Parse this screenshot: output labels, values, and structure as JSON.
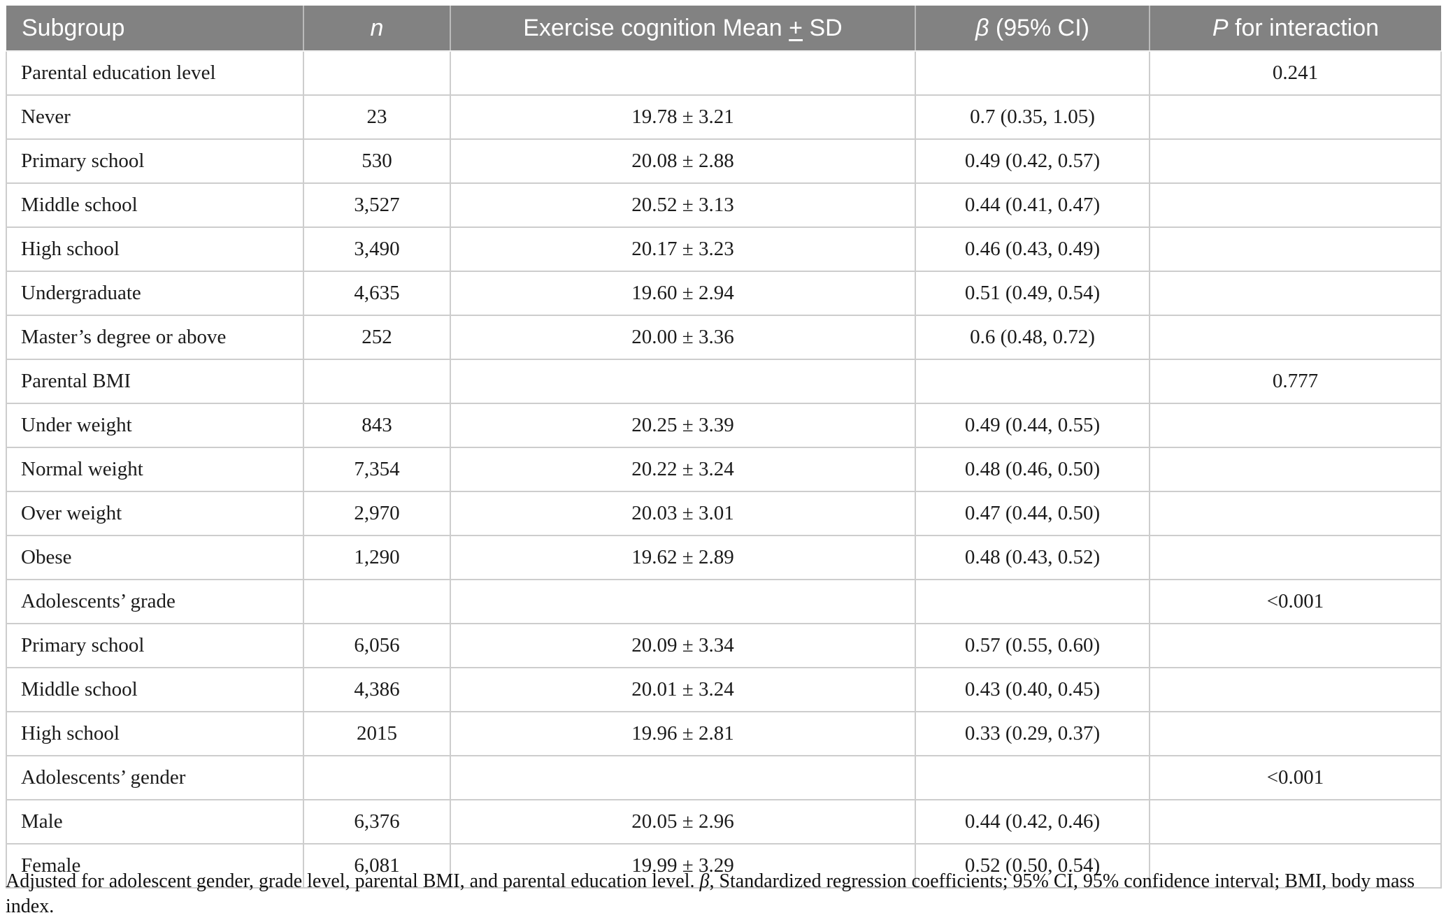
{
  "table": {
    "header": {
      "subgroup": "Subgroup",
      "n": "n",
      "mean_pre": "Exercise cognition Mean ",
      "mean_pm": "+",
      "mean_post": " SD",
      "beta_italic": "β",
      "beta_rest": " (95% CI)",
      "p_italic": "P",
      "p_rest": " for interaction"
    },
    "rows": [
      {
        "type": "category",
        "subgroup": "Parental education level",
        "n": "",
        "mean_sd": "",
        "beta_ci": "",
        "p_interaction": "0.241"
      },
      {
        "type": "data",
        "subgroup": "Never",
        "n": "23",
        "mean_sd": "19.78 ± 3.21",
        "beta_ci": "0.7 (0.35, 1.05)",
        "p_interaction": ""
      },
      {
        "type": "data",
        "subgroup": "Primary school",
        "n": "530",
        "mean_sd": "20.08 ± 2.88",
        "beta_ci": "0.49 (0.42, 0.57)",
        "p_interaction": ""
      },
      {
        "type": "data",
        "subgroup": "Middle school",
        "n": "3,527",
        "mean_sd": "20.52 ± 3.13",
        "beta_ci": "0.44 (0.41, 0.47)",
        "p_interaction": ""
      },
      {
        "type": "data",
        "subgroup": "High school",
        "n": "3,490",
        "mean_sd": "20.17 ± 3.23",
        "beta_ci": "0.46 (0.43, 0.49)",
        "p_interaction": ""
      },
      {
        "type": "data",
        "subgroup": "Undergraduate",
        "n": "4,635",
        "mean_sd": "19.60 ± 2.94",
        "beta_ci": "0.51 (0.49, 0.54)",
        "p_interaction": ""
      },
      {
        "type": "data",
        "subgroup": "Master’s degree or above",
        "n": "252",
        "mean_sd": "20.00 ± 3.36",
        "beta_ci": "0.6 (0.48, 0.72)",
        "p_interaction": ""
      },
      {
        "type": "category",
        "subgroup": "Parental BMI",
        "n": "",
        "mean_sd": "",
        "beta_ci": "",
        "p_interaction": "0.777"
      },
      {
        "type": "data",
        "subgroup": "Under weight",
        "n": "843",
        "mean_sd": "20.25 ± 3.39",
        "beta_ci": "0.49 (0.44, 0.55)",
        "p_interaction": ""
      },
      {
        "type": "data",
        "subgroup": "Normal weight",
        "n": "7,354",
        "mean_sd": "20.22 ± 3.24",
        "beta_ci": "0.48 (0.46, 0.50)",
        "p_interaction": ""
      },
      {
        "type": "data",
        "subgroup": "Over weight",
        "n": "2,970",
        "mean_sd": "20.03 ± 3.01",
        "beta_ci": "0.47 (0.44, 0.50)",
        "p_interaction": ""
      },
      {
        "type": "data",
        "subgroup": "Obese",
        "n": "1,290",
        "mean_sd": "19.62 ± 2.89",
        "beta_ci": "0.48 (0.43, 0.52)",
        "p_interaction": ""
      },
      {
        "type": "category",
        "subgroup": "Adolescents’ grade",
        "n": "",
        "mean_sd": "",
        "beta_ci": "",
        "p_interaction": "<0.001"
      },
      {
        "type": "data",
        "subgroup": "Primary school",
        "n": "6,056",
        "mean_sd": "20.09 ± 3.34",
        "beta_ci": "0.57 (0.55, 0.60)",
        "p_interaction": ""
      },
      {
        "type": "data",
        "subgroup": "Middle school",
        "n": "4,386",
        "mean_sd": "20.01 ± 3.24",
        "beta_ci": "0.43 (0.40, 0.45)",
        "p_interaction": ""
      },
      {
        "type": "data",
        "subgroup": "High school",
        "n": "2015",
        "mean_sd": "19.96 ± 2.81",
        "beta_ci": "0.33 (0.29, 0.37)",
        "p_interaction": ""
      },
      {
        "type": "category",
        "subgroup": "Adolescents’ gender",
        "n": "",
        "mean_sd": "",
        "beta_ci": "",
        "p_interaction": "<0.001"
      },
      {
        "type": "data",
        "subgroup": "Male",
        "n": "6,376",
        "mean_sd": "20.05 ± 2.96",
        "beta_ci": "0.44 (0.42, 0.46)",
        "p_interaction": ""
      },
      {
        "type": "data",
        "subgroup": "Female",
        "n": "6,081",
        "mean_sd": "19.99 ± 3.29",
        "beta_ci": "0.52 (0.50, 0.54)",
        "p_interaction": ""
      }
    ]
  },
  "footnote": {
    "pre": "Adjusted for adolescent gender, grade level, parental BMI, and parental education level. ",
    "italic": "β",
    "post": ", Standardized regression coefficients; 95% CI, 95% confidence interval; BMI, body mass index."
  },
  "colors": {
    "header_bg": "#828282",
    "header_text": "#ffffff",
    "grid_line": "#cdcdcd",
    "body_text": "#1b1b1b"
  }
}
